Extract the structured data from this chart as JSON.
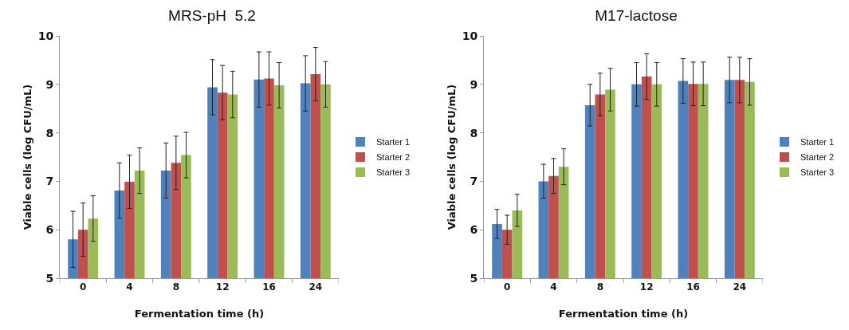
{
  "chart_data": [
    {
      "type": "bar",
      "title": "MRS-pH  5.2",
      "xlabel": "Fermentation time (h)",
      "ylabel": "Viable cells (log CFU/mL)",
      "categories": [
        "0",
        "4",
        "8",
        "12",
        "16",
        "24"
      ],
      "ylim": [
        5,
        10
      ],
      "yticks": [
        5,
        6,
        7,
        8,
        9,
        10
      ],
      "grid": false,
      "legend": "right",
      "series": [
        {
          "name": "Starter 1",
          "color": "#4f81bd",
          "values": [
            5.8,
            6.81,
            7.22,
            8.94,
            9.1,
            9.02
          ],
          "errors": [
            0.58,
            0.57,
            0.57,
            0.57,
            0.57,
            0.57
          ]
        },
        {
          "name": "Starter 2",
          "color": "#c0504d",
          "values": [
            6.0,
            6.99,
            7.38,
            8.83,
            9.12,
            9.21
          ],
          "errors": [
            0.55,
            0.55,
            0.55,
            0.56,
            0.55,
            0.55
          ]
        },
        {
          "name": "Starter 3",
          "color": "#9bbb59",
          "values": [
            6.23,
            7.22,
            7.54,
            8.79,
            8.98,
            9.0
          ],
          "errors": [
            0.47,
            0.47,
            0.47,
            0.48,
            0.47,
            0.47
          ]
        }
      ]
    },
    {
      "type": "bar",
      "title": "M17-lactose",
      "xlabel": "Fermentation time (h)",
      "ylabel": "Viable cells (log CFU/mL)",
      "categories": [
        "0",
        "4",
        "8",
        "12",
        "16",
        "24"
      ],
      "ylim": [
        5,
        10
      ],
      "yticks": [
        5,
        6,
        7,
        8,
        9,
        10
      ],
      "grid": false,
      "legend": "right",
      "series": [
        {
          "name": "Starter 1",
          "color": "#4f81bd",
          "values": [
            6.12,
            7.0,
            8.57,
            9.0,
            9.07,
            9.09
          ],
          "errors": [
            0.3,
            0.35,
            0.43,
            0.45,
            0.46,
            0.47
          ]
        },
        {
          "name": "Starter 2",
          "color": "#c0504d",
          "values": [
            6.0,
            7.11,
            8.79,
            9.16,
            9.01,
            9.09
          ],
          "errors": [
            0.3,
            0.36,
            0.44,
            0.47,
            0.45,
            0.47
          ]
        },
        {
          "name": "Starter 3",
          "color": "#9bbb59",
          "values": [
            6.4,
            7.3,
            8.89,
            9.0,
            9.01,
            9.05
          ],
          "errors": [
            0.33,
            0.37,
            0.44,
            0.45,
            0.45,
            0.48
          ]
        }
      ]
    }
  ]
}
